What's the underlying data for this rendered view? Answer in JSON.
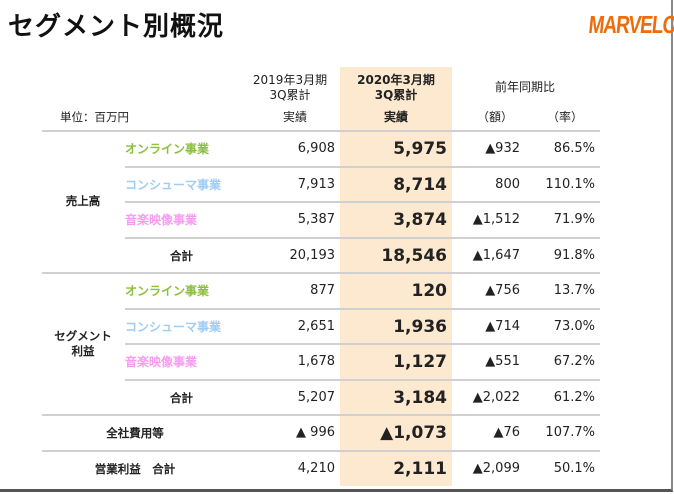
{
  "title": "セグメント別概況",
  "logo": "MARVELOUS!",
  "unit": "単位：百万円",
  "headers": {
    "prev_period": "2019年3月期",
    "prev_sub": "3Q累計",
    "prev_col": "実績",
    "cur_period": "2020年3月期",
    "cur_sub": "3Q累計",
    "cur_col": "実績",
    "yoy": "前年同期比",
    "yoy_amount": "（額）",
    "yoy_rate": "（率）"
  },
  "colors": {
    "online": "#8cbf3f",
    "consumer": "#9fcdf5",
    "music": "#f79cf0",
    "highlight": "#fde9d0",
    "logo": "#ef6c0a"
  },
  "groups": {
    "sales": "売上高",
    "segment_profit_1": "セグメント",
    "segment_profit_2": "利益"
  },
  "rows": [
    {
      "label": "オンライン事業",
      "prev": "6,908",
      "cur": "5,975",
      "diff": "▲932",
      "rate": "86.5%"
    },
    {
      "label": "コンシューマ事業",
      "prev": "7,913",
      "cur": "8,714",
      "diff": "800",
      "rate": "110.1%"
    },
    {
      "label": "音楽映像事業",
      "prev": "5,387",
      "cur": "3,874",
      "diff": "▲1,512",
      "rate": "71.9%"
    },
    {
      "label": "合計",
      "prev": "20,193",
      "cur": "18,546",
      "diff": "▲1,647",
      "rate": "91.8%"
    },
    {
      "label": "オンライン事業",
      "prev": "877",
      "cur": "120",
      "diff": "▲756",
      "rate": "13.7%"
    },
    {
      "label": "コンシューマ事業",
      "prev": "2,651",
      "cur": "1,936",
      "diff": "▲714",
      "rate": "73.0%"
    },
    {
      "label": "音楽映像事業",
      "prev": "1,678",
      "cur": "1,127",
      "diff": "▲551",
      "rate": "67.2%"
    },
    {
      "label": "合計",
      "prev": "5,207",
      "cur": "3,184",
      "diff": "▲2,022",
      "rate": "61.2%"
    },
    {
      "label": "全社費用等",
      "prev": "▲ 996",
      "cur": "▲1,073",
      "diff": "▲76",
      "rate": "107.7%"
    },
    {
      "label": "営業利益　合計",
      "prev": "4,210",
      "cur": "2,111",
      "diff": "▲2,099",
      "rate": "50.1%"
    }
  ]
}
